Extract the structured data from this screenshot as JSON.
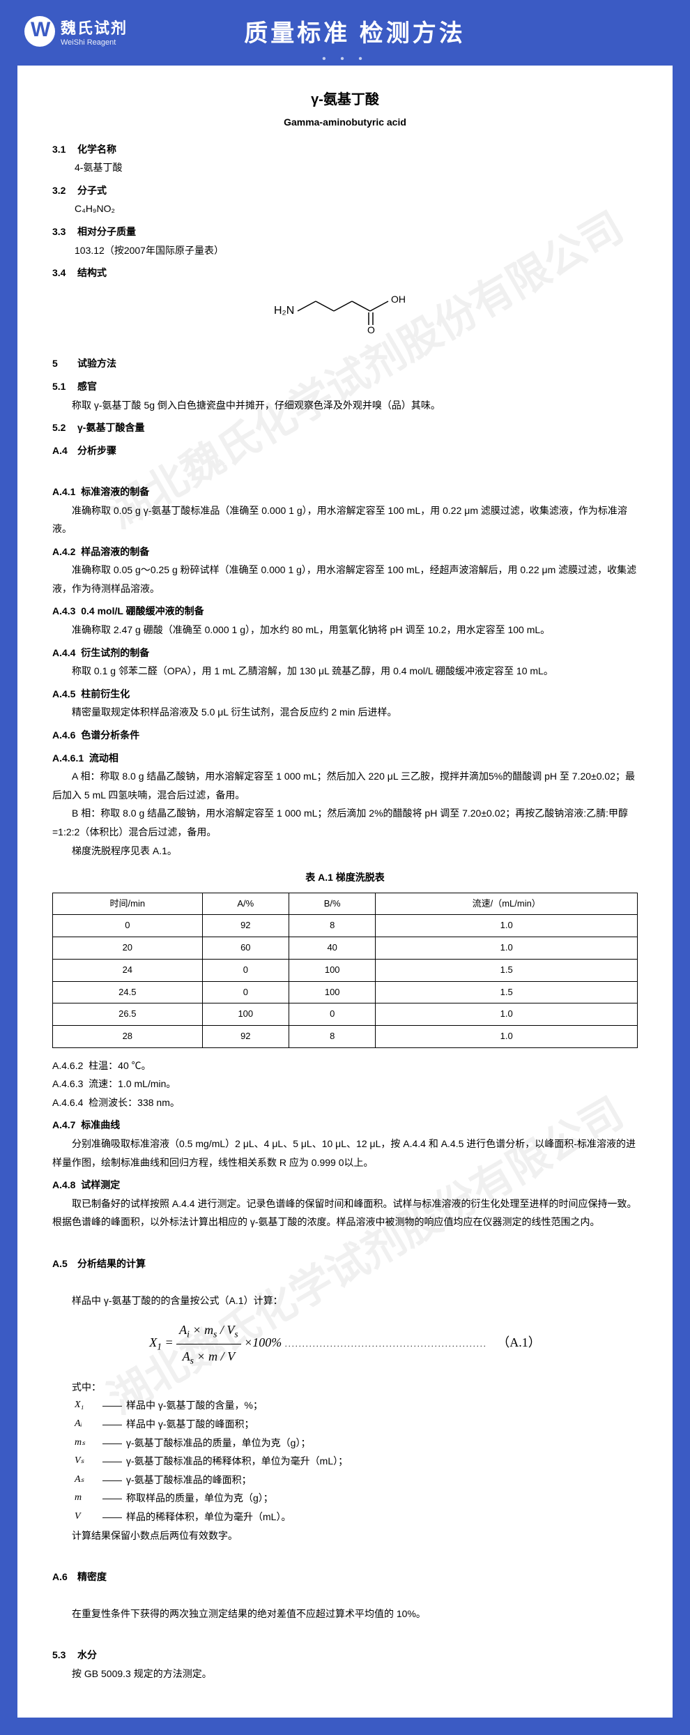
{
  "header": {
    "logo_cn": "魏氏试剂",
    "logo_en": "WeiShi Reagent",
    "title": "质量标准 检测方法"
  },
  "watermark": "湖北魏氏化学试剂股份有限公司",
  "doc": {
    "title_cn": "γ-氨基丁酸",
    "title_en": "Gamma-aminobutyric acid",
    "s31": {
      "num": "3.1",
      "label": "化学名称",
      "val": "4-氨基丁酸"
    },
    "s32": {
      "num": "3.2",
      "label": "分子式",
      "val": "C₄H₉NO₂"
    },
    "s33": {
      "num": "3.3",
      "label": "相对分子质量",
      "val": "103.12（按2007年国际原子量表）"
    },
    "s34": {
      "num": "3.4",
      "label": "结构式"
    },
    "s5": {
      "num": "5",
      "label": "试验方法"
    },
    "s51": {
      "num": "5.1",
      "label": "感官",
      "body": "称取 γ-氨基丁酸 5g 倒入白色搪瓷盘中并摊开，仔细观察色泽及外观并嗅（品）其味。"
    },
    "s52": {
      "num": "5.2",
      "label": "γ-氨基丁酸含量"
    },
    "a4": {
      "num": "A.4",
      "label": "分析步骤"
    },
    "a41": {
      "num": "A.4.1",
      "label": "标准溶液的制备",
      "body": "准确称取 0.05 g γ-氨基丁酸标准品（准确至 0.000 1 g），用水溶解定容至 100 mL，用 0.22 μm 滤膜过滤，收集滤液，作为标准溶液。"
    },
    "a42": {
      "num": "A.4.2",
      "label": "样品溶液的制备",
      "body": "准确称取 0.05 g～0.25 g 粉碎试样（准确至 0.000 1 g），用水溶解定容至 100 mL，经超声波溶解后，用 0.22 μm 滤膜过滤，收集滤液，作为待测样品溶液。"
    },
    "a43": {
      "num": "A.4.3",
      "label": "0.4 mol/L 硼酸缓冲液的制备",
      "body": "准确称取 2.47 g 硼酸（准确至 0.000 1 g），加水约 80 mL，用氢氧化钠将 pH 调至 10.2，用水定容至 100 mL。"
    },
    "a44": {
      "num": "A.4.4",
      "label": "衍生试剂的制备",
      "body": "称取 0.1 g 邻苯二醛（OPA），用 1 mL 乙腈溶解，加 130 μL 巯基乙醇，用 0.4 mol/L 硼酸缓冲液定容至 10 mL。"
    },
    "a45": {
      "num": "A.4.5",
      "label": "柱前衍生化",
      "body": "精密量取规定体积样品溶液及 5.0 μL 衍生试剂，混合反应约 2 min 后进样。"
    },
    "a46": {
      "num": "A.4.6",
      "label": "色谱分析条件"
    },
    "a461": {
      "num": "A.4.6.1",
      "label": "流动相",
      "a_phase": "A 相：称取 8.0 g 结晶乙酸钠，用水溶解定容至 1 000 mL；然后加入 220 μL 三乙胺，搅拌并滴加5%的醋酸调 pH 至 7.20±0.02；最后加入 5 mL 四氢呋喃，混合后过滤，备用。",
      "b_phase": "B 相：称取 8.0 g 结晶乙酸钠，用水溶解定容至 1 000 mL；然后滴加 2%的醋酸将 pH 调至 7.20±0.02；再按乙酸钠溶液:乙腈:甲醇=1:2:2（体积比）混合后过滤，备用。",
      "foot": "梯度洗脱程序见表 A.1。"
    },
    "tableA1": {
      "caption": "表 A.1  梯度洗脱表",
      "headers": [
        "时间/min",
        "A/%",
        "B/%",
        "流速/（mL/min）"
      ],
      "rows": [
        [
          "0",
          "92",
          "8",
          "1.0"
        ],
        [
          "20",
          "60",
          "40",
          "1.0"
        ],
        [
          "24",
          "0",
          "100",
          "1.5"
        ],
        [
          "24.5",
          "0",
          "100",
          "1.5"
        ],
        [
          "26.5",
          "100",
          "0",
          "1.0"
        ],
        [
          "28",
          "92",
          "8",
          "1.0"
        ]
      ]
    },
    "a462": {
      "num": "A.4.6.2",
      "body": "柱温：40 ℃。"
    },
    "a463": {
      "num": "A.4.6.3",
      "body": "流速：1.0 mL/min。"
    },
    "a464": {
      "num": "A.4.6.4",
      "body": "检测波长：338 nm。"
    },
    "a47": {
      "num": "A.4.7",
      "label": "标准曲线",
      "body": "分别准确吸取标准溶液（0.5 mg/mL）2 μL、4 μL、5 μL、10 μL、12 μL，按 A.4.4 和 A.4.5 进行色谱分析，以峰面积-标准溶液的进样量作图，绘制标准曲线和回归方程，线性相关系数 R 应为 0.999 0以上。"
    },
    "a48": {
      "num": "A.4.8",
      "label": "试样测定",
      "body": "取已制备好的试样按照 A.4.4 进行测定。记录色谱峰的保留时间和峰面积。试样与标准溶液的衍生化处理至进样的时间应保持一致。根据色谱峰的峰面积，以外标法计算出相应的 γ-氨基丁酸的浓度。样品溶液中被测物的响应值均应在仪器测定的线性范围之内。"
    },
    "a5": {
      "num": "A.5",
      "label": "分析结果的计算",
      "lead": "样品中 γ-氨基丁酸的的含量按公式（A.1）计算：",
      "formula_num": "（A.1）",
      "where": "式中：",
      "vars": [
        {
          "sym": "X₁",
          "desc": "样品中 γ-氨基丁酸的含量，%；"
        },
        {
          "sym": "Aᵢ",
          "desc": "样品中 γ-氨基丁酸的峰面积；"
        },
        {
          "sym": "mₛ",
          "desc": "γ-氨基丁酸标准品的质量，单位为克（g）；"
        },
        {
          "sym": "Vₛ",
          "desc": "γ-氨基丁酸标准品的稀释体积，单位为毫升（mL）；"
        },
        {
          "sym": "Aₛ",
          "desc": "γ-氨基丁酸标准品的峰面积；"
        },
        {
          "sym": "m",
          "desc": "称取样品的质量，单位为克（g）；"
        },
        {
          "sym": "V",
          "desc": "样品的稀释体积，单位为毫升（mL）。"
        }
      ],
      "foot": "计算结果保留小数点后两位有效数字。"
    },
    "a6": {
      "num": "A.6",
      "label": "精密度",
      "body": "在重复性条件下获得的两次独立测定结果的绝对差值不应超过算术平均值的 10%。"
    },
    "s53": {
      "num": "5.3",
      "label": "水分",
      "body": "按 GB 5009.3 规定的方法测定。"
    }
  }
}
